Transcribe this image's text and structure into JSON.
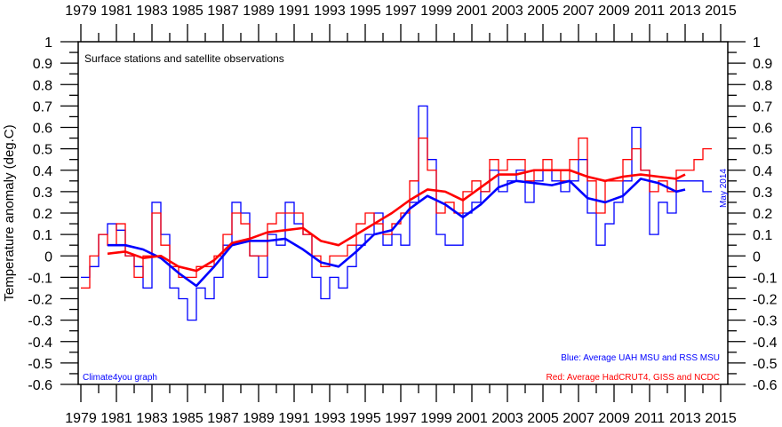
{
  "chart_data": {
    "type": "line",
    "title": "Surface stations and satellite observations",
    "ylabel": "Temperature anomaly (deg.C)",
    "xlabel": "",
    "credit": "Climate4you graph",
    "date_stamp": "May 2014",
    "legend": {
      "placement": "bottom-right",
      "blue": "Blue: Average UAH MSU and RSS MSU",
      "red": "Red: Average HadCRUT4, GISS and NCDC"
    },
    "xlim": [
      1978.85,
      2015.4
    ],
    "ylim": [
      -0.6,
      1.0
    ],
    "x_ticks": [
      1979,
      1981,
      1983,
      1985,
      1987,
      1989,
      1991,
      1993,
      1995,
      1997,
      1999,
      2001,
      2003,
      2005,
      2007,
      2009,
      2011,
      2013,
      2015
    ],
    "y_ticks": [
      "1",
      "0.9",
      "0.8",
      "0.7",
      "0.6",
      "0.5",
      "0.4",
      "0.3",
      "0.2",
      "0.1",
      "0",
      "-0.1",
      "-0.2",
      "-0.3",
      "-0.4",
      "-0.5",
      "-0.6"
    ],
    "grid": false,
    "colors": {
      "blue": "#0000ff",
      "red": "#ff0000",
      "frame": "#000000"
    },
    "series": [
      {
        "color": "blue",
        "style": "step",
        "x_start": 1979.0,
        "x_step": 0.5,
        "values": [
          -0.1,
          -0.05,
          0.1,
          0.15,
          0.12,
          0.0,
          -0.05,
          -0.15,
          0.25,
          0.1,
          -0.15,
          -0.2,
          -0.3,
          -0.15,
          -0.2,
          -0.1,
          0.05,
          0.25,
          0.2,
          0.0,
          -0.1,
          0.1,
          0.05,
          0.25,
          0.15,
          0.1,
          -0.1,
          -0.2,
          -0.1,
          -0.15,
          -0.05,
          0.05,
          0.1,
          0.2,
          0.05,
          0.1,
          0.05,
          0.25,
          0.7,
          0.45,
          0.1,
          0.05,
          0.05,
          0.2,
          0.25,
          0.3,
          0.4,
          0.3,
          0.35,
          0.4,
          0.25,
          0.35,
          0.4,
          0.35,
          0.3,
          0.35,
          0.45,
          0.2,
          0.05,
          0.15,
          0.25,
          0.35,
          0.6,
          0.4,
          0.1,
          0.25,
          0.2,
          0.35,
          0.35,
          0.35,
          0.3
        ]
      },
      {
        "color": "red",
        "style": "step",
        "x_start": 1979.0,
        "x_step": 0.5,
        "values": [
          -0.15,
          0.0,
          0.1,
          0.05,
          0.15,
          0.0,
          -0.1,
          0.0,
          0.2,
          0.05,
          -0.05,
          -0.1,
          -0.1,
          -0.05,
          -0.05,
          0.0,
          0.1,
          0.2,
          0.15,
          0.0,
          0.0,
          0.15,
          0.2,
          0.2,
          0.2,
          0.1,
          0.0,
          -0.05,
          0.0,
          0.0,
          0.05,
          0.15,
          0.2,
          0.15,
          0.1,
          0.15,
          0.2,
          0.35,
          0.55,
          0.4,
          0.2,
          0.25,
          0.2,
          0.3,
          0.35,
          0.3,
          0.45,
          0.4,
          0.45,
          0.45,
          0.35,
          0.4,
          0.45,
          0.4,
          0.35,
          0.45,
          0.55,
          0.35,
          0.2,
          0.35,
          0.35,
          0.45,
          0.5,
          0.4,
          0.3,
          0.35,
          0.3,
          0.4,
          0.4,
          0.45,
          0.5
        ]
      },
      {
        "color": "blue",
        "style": "running-mean",
        "x": [
          1980.5,
          1981.5,
          1982.5,
          1983.5,
          1984.5,
          1985.5,
          1986.5,
          1987.5,
          1988.5,
          1989.5,
          1990.5,
          1991.5,
          1992.5,
          1993.5,
          1994.5,
          1995.5,
          1996.5,
          1997.5,
          1998.5,
          1999.5,
          2000.5,
          2001.5,
          2002.5,
          2003.5,
          2004.5,
          2005.5,
          2006.5,
          2007.5,
          2008.5,
          2009.5,
          2010.5,
          2011.5,
          2012.5,
          2013.0
        ],
        "values": [
          0.05,
          0.05,
          0.03,
          -0.01,
          -0.08,
          -0.14,
          -0.05,
          0.05,
          0.07,
          0.07,
          0.08,
          0.03,
          -0.03,
          -0.05,
          0.02,
          0.1,
          0.12,
          0.22,
          0.28,
          0.24,
          0.18,
          0.24,
          0.32,
          0.35,
          0.34,
          0.33,
          0.35,
          0.27,
          0.25,
          0.28,
          0.36,
          0.34,
          0.3,
          0.31
        ]
      },
      {
        "color": "red",
        "style": "running-mean",
        "x": [
          1980.5,
          1981.5,
          1982.5,
          1983.5,
          1984.5,
          1985.5,
          1986.5,
          1987.5,
          1988.5,
          1989.5,
          1990.5,
          1991.5,
          1992.5,
          1993.5,
          1994.5,
          1995.5,
          1996.5,
          1997.5,
          1998.5,
          1999.5,
          2000.5,
          2001.5,
          2002.5,
          2003.5,
          2004.5,
          2005.5,
          2006.5,
          2007.5,
          2008.5,
          2009.5,
          2010.5,
          2011.5,
          2012.5,
          2013.0
        ],
        "values": [
          0.01,
          0.02,
          -0.01,
          0.0,
          -0.05,
          -0.07,
          -0.02,
          0.06,
          0.08,
          0.11,
          0.12,
          0.13,
          0.07,
          0.05,
          0.1,
          0.15,
          0.2,
          0.26,
          0.31,
          0.3,
          0.26,
          0.32,
          0.38,
          0.38,
          0.4,
          0.4,
          0.4,
          0.37,
          0.35,
          0.37,
          0.38,
          0.37,
          0.36,
          0.38
        ]
      }
    ]
  }
}
